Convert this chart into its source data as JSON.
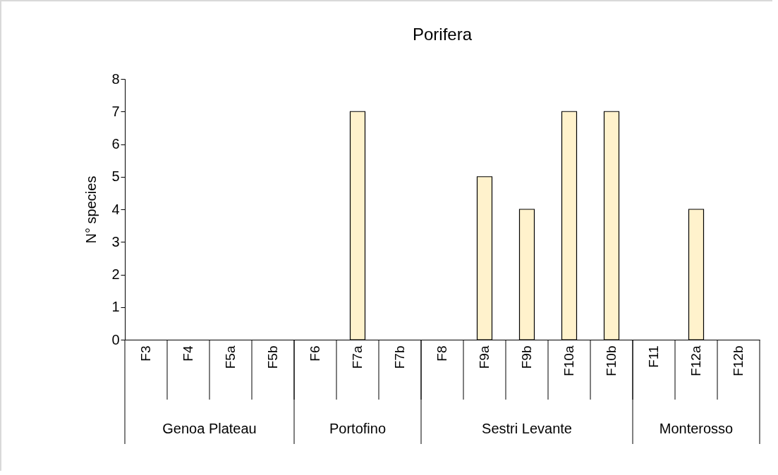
{
  "chart_data": {
    "type": "bar",
    "title": "Porifera",
    "ylabel": "N° species",
    "categories": [
      "F3",
      "F4",
      "F5a",
      "F5b",
      "F6",
      "F7a",
      "F7b",
      "F8",
      "F9a",
      "F9b",
      "F10a",
      "F10b",
      "F11",
      "F12a",
      "F12b"
    ],
    "values": [
      0,
      0,
      0,
      0,
      0,
      7,
      0,
      0,
      5,
      4,
      7,
      7,
      0,
      4,
      0
    ],
    "color": "#fff2cc",
    "ylim": [
      0,
      8
    ],
    "yticks": [
      0,
      1,
      2,
      3,
      4,
      5,
      6,
      7,
      8
    ],
    "annotations": [
      "Genoa Plateau",
      "Portofino",
      "Sestri Levante",
      "Monterosso"
    ]
  }
}
